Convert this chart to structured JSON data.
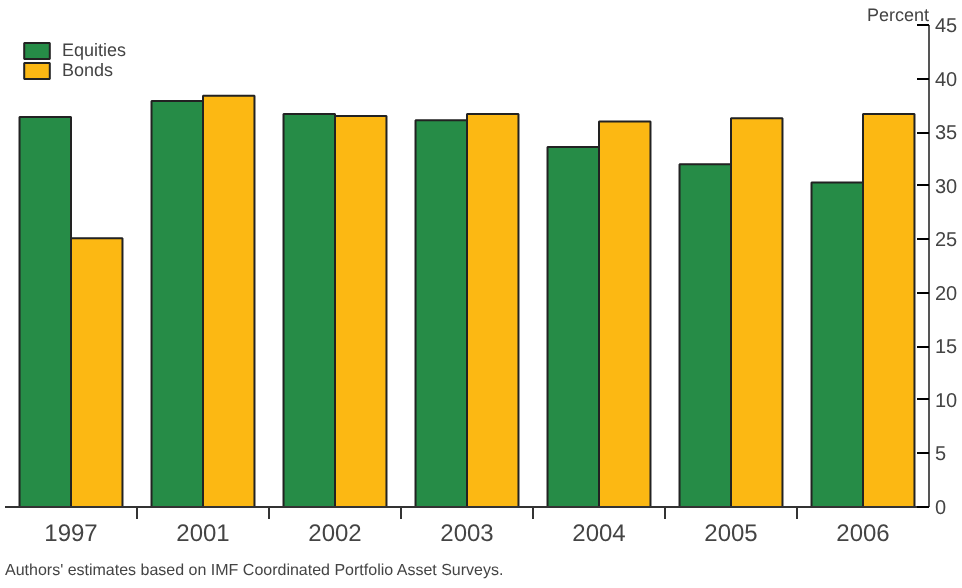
{
  "chart_data": {
    "type": "bar",
    "ylabel": "Percent",
    "categories": [
      "1997",
      "2001",
      "2002",
      "2003",
      "2004",
      "2005",
      "2006"
    ],
    "series": [
      {
        "name": "Equities",
        "color": "#268c47",
        "values": [
          36.4,
          37.9,
          36.7,
          36.1,
          33.6,
          32.0,
          30.3
        ]
      },
      {
        "name": "Bonds",
        "color": "#fcb813",
        "values": [
          25.1,
          38.4,
          36.5,
          36.7,
          36.0,
          36.3,
          36.7
        ]
      }
    ],
    "ylim": [
      0,
      45
    ],
    "yticks": [
      0,
      5,
      10,
      15,
      20,
      25,
      30,
      35,
      40,
      45
    ],
    "grid": false,
    "legend": "top left",
    "annotations": [
      "Authors' estimates based on IMF Coordinated Portfolio Asset Surveys."
    ]
  }
}
